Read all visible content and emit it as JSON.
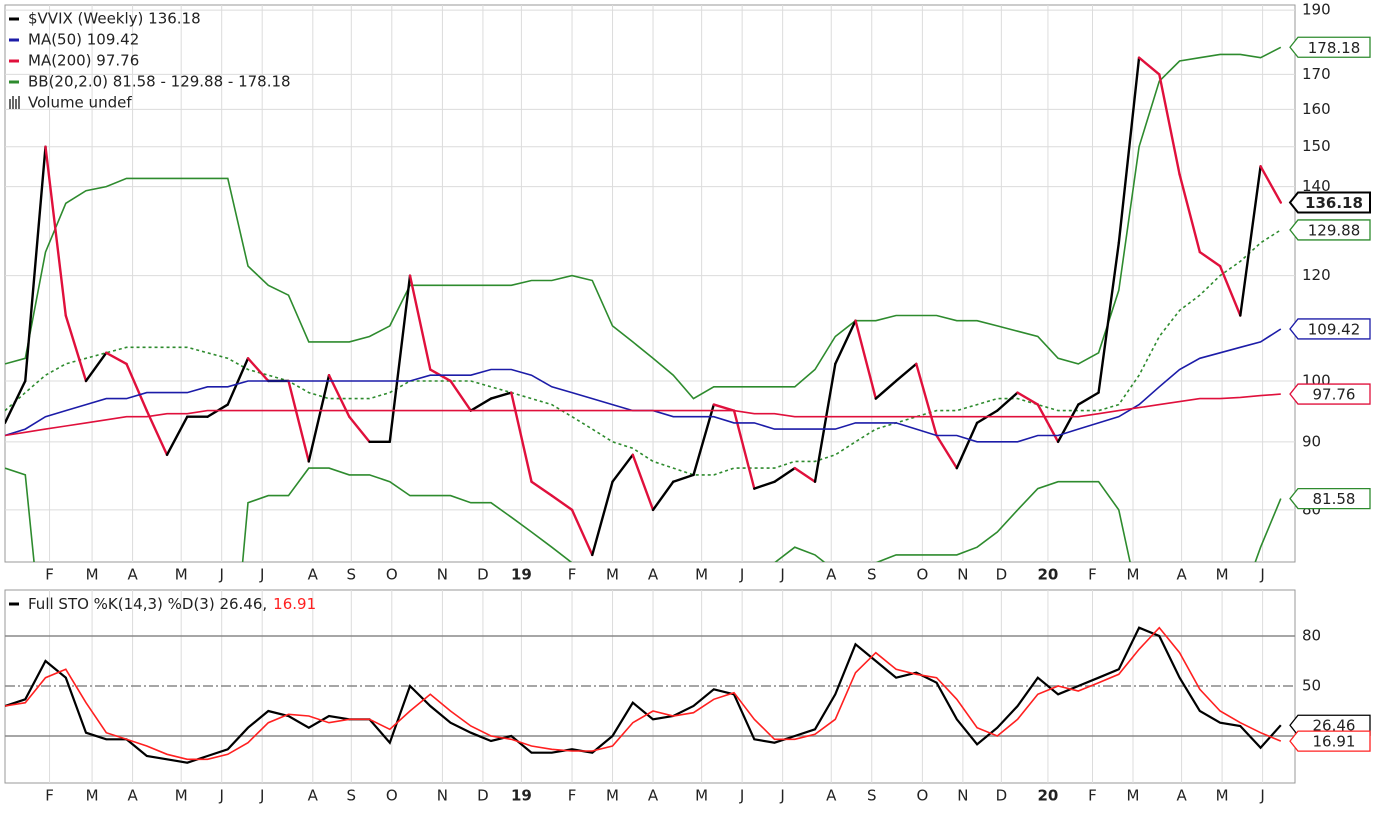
{
  "chart_data": [
    {
      "type": "line",
      "log_scale": true,
      "grid": true,
      "ylim": [
        73.1,
        191.7
      ],
      "yticks": [
        80,
        90,
        100,
        120,
        140,
        150,
        160,
        170,
        190
      ],
      "xlim": [
        0,
        63.7
      ],
      "xticks": [
        {
          "value": 2.2,
          "label": "F"
        },
        {
          "value": 4.3,
          "label": "M"
        },
        {
          "value": 6.3,
          "label": "A"
        },
        {
          "value": 8.7,
          "label": "M"
        },
        {
          "value": 10.7,
          "label": "J"
        },
        {
          "value": 12.7,
          "label": "J"
        },
        {
          "value": 15.2,
          "label": "A"
        },
        {
          "value": 17.1,
          "label": "S"
        },
        {
          "value": 19.1,
          "label": "O"
        },
        {
          "value": 21.6,
          "label": "N"
        },
        {
          "value": 23.6,
          "label": "D"
        },
        {
          "value": 25.5,
          "label": "19"
        },
        {
          "value": 28.0,
          "label": "F"
        },
        {
          "value": 30.0,
          "label": "M"
        },
        {
          "value": 32.0,
          "label": "A"
        },
        {
          "value": 34.4,
          "label": "M"
        },
        {
          "value": 36.4,
          "label": "J"
        },
        {
          "value": 38.4,
          "label": "J"
        },
        {
          "value": 40.8,
          "label": "A"
        },
        {
          "value": 42.8,
          "label": "S"
        },
        {
          "value": 45.3,
          "label": "O"
        },
        {
          "value": 47.3,
          "label": "N"
        },
        {
          "value": 49.2,
          "label": "D"
        },
        {
          "value": 51.5,
          "label": "20"
        },
        {
          "value": 53.7,
          "label": "F"
        },
        {
          "value": 55.7,
          "label": "M"
        },
        {
          "value": 58.1,
          "label": "A"
        },
        {
          "value": 60.1,
          "label": "M"
        },
        {
          "value": 62.1,
          "label": "J"
        }
      ],
      "series": [
        {
          "name": "$VVIX (Weekly) 136.18",
          "color": "#000000",
          "down_color": "#e0103c",
          "values": [
            93,
            100,
            150,
            112,
            100,
            105,
            103,
            95,
            88,
            94,
            94,
            96,
            104,
            100,
            100,
            87,
            101,
            94,
            90,
            90,
            120,
            102,
            100,
            95,
            97,
            98,
            84,
            82,
            80,
            74,
            84,
            88,
            80,
            84,
            85,
            96,
            95,
            83,
            84,
            86,
            84,
            103,
            111,
            97,
            100,
            103,
            91,
            86,
            93,
            95,
            98,
            96,
            90,
            96,
            98,
            127,
            175,
            170,
            143,
            125,
            122,
            112,
            145,
            136.18
          ]
        },
        {
          "name": "MA(50) 109.42",
          "color": "#1c1ca8",
          "values": [
            91,
            92,
            94,
            95,
            96,
            97,
            97,
            98,
            98,
            98,
            99,
            99,
            100,
            100,
            100,
            100,
            100,
            100,
            100,
            100,
            100,
            101,
            101,
            101,
            102,
            102,
            101,
            99,
            98,
            97,
            96,
            95,
            95,
            94,
            94,
            94,
            93,
            93,
            92,
            92,
            92,
            92,
            93,
            93,
            93,
            92,
            91,
            91,
            90,
            90,
            90,
            91,
            91,
            92,
            93,
            94,
            96,
            99,
            102,
            104,
            105,
            106,
            107,
            109.42
          ]
        },
        {
          "name": "MA(200) 97.76",
          "color": "#e0103c",
          "values": [
            91,
            91.5,
            92,
            92.5,
            93,
            93.5,
            94,
            94,
            94.5,
            94.5,
            95,
            95,
            95,
            95,
            95,
            95,
            95,
            95,
            95,
            95,
            95,
            95,
            95,
            95,
            95,
            95,
            95,
            95,
            95,
            95,
            95,
            95,
            95,
            95,
            95,
            95,
            95,
            94.5,
            94.5,
            94,
            94,
            94,
            94,
            94,
            94,
            94,
            94,
            94,
            94,
            94,
            94,
            94,
            94,
            94,
            94.5,
            95,
            95.5,
            96,
            96.5,
            97,
            97,
            97.2,
            97.5,
            97.76
          ]
        }
      ],
      "bands": {
        "name": "BB(20,2.0) 81.58 - 129.88 - 178.18",
        "color": "#2e8b2e",
        "upper": [
          103,
          104,
          125,
          136,
          139,
          140,
          142,
          142,
          142,
          142,
          142,
          142,
          122,
          118,
          116,
          107,
          107,
          107,
          108,
          110,
          118,
          118,
          118,
          118,
          118,
          118,
          119,
          119,
          120,
          119,
          110,
          107,
          104,
          101,
          97,
          99,
          99,
          99,
          99,
          99,
          102,
          108,
          111,
          111,
          112,
          112,
          112,
          111,
          111,
          110,
          109,
          108,
          104,
          103,
          105,
          117,
          150,
          168,
          174,
          175,
          176,
          176,
          175,
          178.18
        ],
        "middle": [
          95,
          98,
          101,
          103,
          104,
          105,
          106,
          106,
          106,
          106,
          105,
          104,
          102,
          101,
          100,
          98,
          97,
          97,
          97,
          98,
          100,
          100,
          100,
          100,
          99,
          98,
          97,
          96,
          94,
          92,
          90,
          89,
          87,
          86,
          85,
          85,
          86,
          86,
          86,
          87,
          87,
          88,
          90,
          92,
          93,
          94,
          95,
          95,
          96,
          97,
          97,
          96,
          95,
          95,
          95,
          96,
          101,
          108,
          113,
          116,
          120,
          123,
          127,
          129.88
        ],
        "lower": [
          86,
          85,
          60,
          55,
          52,
          50,
          50,
          50,
          50,
          50,
          50,
          55,
          81,
          82,
          82,
          86,
          86,
          85,
          85,
          84,
          82,
          82,
          82,
          81,
          81,
          79,
          77,
          75,
          73,
          70,
          68,
          67,
          68,
          69,
          71,
          72,
          71,
          71,
          73,
          75,
          74,
          72,
          71,
          73,
          74,
          74,
          74,
          74,
          75,
          77,
          80,
          83,
          84,
          84,
          84,
          80,
          68,
          60,
          58,
          58,
          62,
          68,
          75,
          81.58
        ]
      },
      "volume_label": "Volume undef"
    },
    {
      "type": "line",
      "title": "Full STO %K(14,3) %D(3) 26.46,",
      "d_label": "16.91",
      "ylim": [
        -8.2,
        107.6
      ],
      "yticks": [
        80,
        50
      ],
      "reference_lines": [
        80,
        50,
        20
      ],
      "grid": true,
      "xlim": [
        0,
        63.7
      ],
      "xticks": [
        {
          "value": 2.2,
          "label": "F"
        },
        {
          "value": 4.3,
          "label": "M"
        },
        {
          "value": 6.3,
          "label": "A"
        },
        {
          "value": 8.7,
          "label": "M"
        },
        {
          "value": 10.7,
          "label": "J"
        },
        {
          "value": 12.7,
          "label": "J"
        },
        {
          "value": 15.2,
          "label": "A"
        },
        {
          "value": 17.1,
          "label": "S"
        },
        {
          "value": 19.1,
          "label": "O"
        },
        {
          "value": 21.6,
          "label": "N"
        },
        {
          "value": 23.6,
          "label": "D"
        },
        {
          "value": 25.5,
          "label": "19"
        },
        {
          "value": 28.0,
          "label": "F"
        },
        {
          "value": 30.0,
          "label": "M"
        },
        {
          "value": 32.0,
          "label": "A"
        },
        {
          "value": 34.4,
          "label": "M"
        },
        {
          "value": 36.4,
          "label": "J"
        },
        {
          "value": 38.4,
          "label": "J"
        },
        {
          "value": 40.8,
          "label": "A"
        },
        {
          "value": 42.8,
          "label": "S"
        },
        {
          "value": 45.3,
          "label": "O"
        },
        {
          "value": 47.3,
          "label": "N"
        },
        {
          "value": 49.2,
          "label": "D"
        },
        {
          "value": 51.5,
          "label": "20"
        },
        {
          "value": 53.7,
          "label": "F"
        },
        {
          "value": 55.7,
          "label": "M"
        },
        {
          "value": 58.1,
          "label": "A"
        },
        {
          "value": 60.1,
          "label": "M"
        },
        {
          "value": 62.1,
          "label": "J"
        }
      ],
      "series": [
        {
          "color": "#000000",
          "values": [
            38,
            42,
            65,
            55,
            22,
            18,
            18,
            8,
            6,
            4,
            8,
            12,
            25,
            35,
            32,
            25,
            32,
            30,
            30,
            16,
            50,
            38,
            28,
            22,
            17,
            20,
            10,
            10,
            12,
            10,
            20,
            40,
            30,
            32,
            38,
            48,
            45,
            18,
            16,
            20,
            24,
            45,
            75,
            65,
            55,
            58,
            52,
            30,
            15,
            25,
            38,
            55,
            45,
            50,
            55,
            60,
            85,
            80,
            55,
            35,
            28,
            26,
            13,
            26.46
          ]
        },
        {
          "color": "#ff2020",
          "values": [
            38,
            40,
            55,
            60,
            40,
            22,
            18,
            14,
            9,
            6,
            6,
            9,
            16,
            28,
            33,
            32,
            28,
            30,
            30,
            24,
            35,
            45,
            35,
            26,
            20,
            18,
            14,
            12,
            11,
            11,
            14,
            28,
            35,
            32,
            34,
            42,
            46,
            30,
            18,
            18,
            21,
            30,
            58,
            70,
            60,
            57,
            55,
            42,
            25,
            20,
            30,
            45,
            50,
            47,
            52,
            57,
            72,
            85,
            70,
            48,
            35,
            28,
            22,
            16.91
          ]
        }
      ]
    }
  ]
}
